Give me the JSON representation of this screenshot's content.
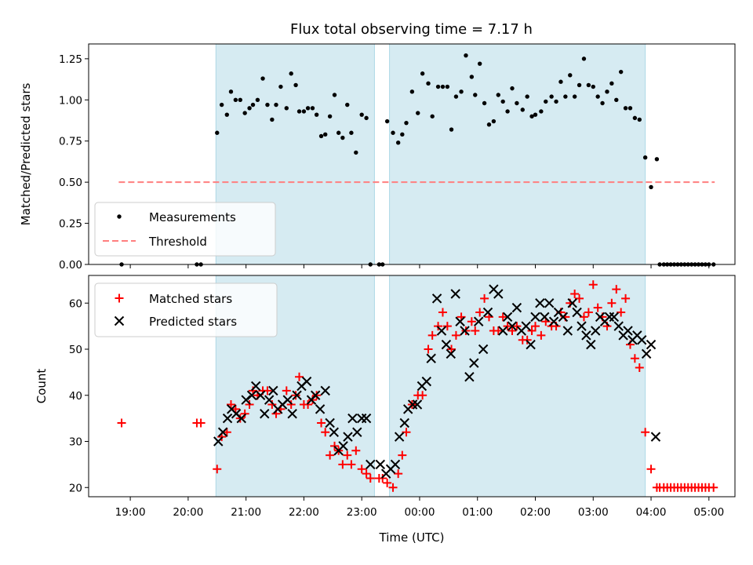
{
  "chart_data": [
    {
      "type": "scatter",
      "title": "Flux total observing time = 7.17 h",
      "xlabel": "",
      "ylabel": "Matched/Predicted stars",
      "x_units": "hours (UTC, continuing past midnight: 24 = 00:00)",
      "xlim": [
        18.28,
        29.45
      ],
      "ylim": [
        0.0,
        1.34
      ],
      "yticks": [
        "0.00",
        "0.25",
        "0.50",
        "0.75",
        "1.00",
        "1.25"
      ],
      "shaded_intervals": [
        [
          20.48,
          23.22
        ],
        [
          23.48,
          27.9
        ]
      ],
      "threshold": {
        "name": "Threshold",
        "value": 0.5,
        "x": [
          18.8,
          29.1
        ],
        "color": "#ff7f7f"
      },
      "legend": {
        "placement": "lower-left",
        "entries": [
          "Measurements",
          "Threshold"
        ]
      },
      "series": [
        {
          "name": "Measurements",
          "color": "#000000",
          "x": [
            18.85,
            20.15,
            20.22,
            20.5,
            20.58,
            20.67,
            20.74,
            20.82,
            20.9,
            20.98,
            21.06,
            21.12,
            21.2,
            21.29,
            21.37,
            21.45,
            21.52,
            21.6,
            21.7,
            21.78,
            21.86,
            21.92,
            22.0,
            22.07,
            22.15,
            22.22,
            22.3,
            22.37,
            22.45,
            22.53,
            22.6,
            22.67,
            22.75,
            22.82,
            22.9,
            23.0,
            23.08,
            23.15,
            23.3,
            23.36,
            23.44,
            23.54,
            23.63,
            23.7,
            23.77,
            23.87,
            23.97,
            24.05,
            24.15,
            24.22,
            24.32,
            24.4,
            24.48,
            24.55,
            24.63,
            24.72,
            24.8,
            24.9,
            24.96,
            25.04,
            25.12,
            25.2,
            25.28,
            25.36,
            25.44,
            25.52,
            25.6,
            25.68,
            25.78,
            25.86,
            25.94,
            26.0,
            26.1,
            26.18,
            26.28,
            26.36,
            26.44,
            26.52,
            26.6,
            26.68,
            26.76,
            26.84,
            26.92,
            27.0,
            27.08,
            27.16,
            27.24,
            27.32,
            27.4,
            27.48,
            27.56,
            27.64,
            27.72,
            27.8,
            27.9,
            28.0,
            28.1,
            28.15,
            28.22,
            28.28,
            28.34,
            28.4,
            28.46,
            28.52,
            28.58,
            28.64,
            28.7,
            28.76,
            28.82,
            28.88,
            28.94,
            29.0,
            29.08
          ],
          "y": [
            0.0,
            0.0,
            0.0,
            0.8,
            0.97,
            0.91,
            1.05,
            1.0,
            1.0,
            0.92,
            0.95,
            0.97,
            1.0,
            1.13,
            0.97,
            0.88,
            0.97,
            1.08,
            0.95,
            1.16,
            1.09,
            0.93,
            0.93,
            0.95,
            0.95,
            0.91,
            0.78,
            0.79,
            0.9,
            1.03,
            0.8,
            0.77,
            0.97,
            0.8,
            0.68,
            0.91,
            0.89,
            0.0,
            0.0,
            0.0,
            0.87,
            0.8,
            0.74,
            0.79,
            0.86,
            1.05,
            0.92,
            1.16,
            1.1,
            0.9,
            1.08,
            1.08,
            1.08,
            0.82,
            1.02,
            1.05,
            1.27,
            1.14,
            1.03,
            1.22,
            0.98,
            0.85,
            0.87,
            1.03,
            0.99,
            0.93,
            1.07,
            0.98,
            0.94,
            1.02,
            0.9,
            0.91,
            0.93,
            0.99,
            1.02,
            0.99,
            1.11,
            1.02,
            1.15,
            1.02,
            1.09,
            1.25,
            1.09,
            1.08,
            1.02,
            0.98,
            1.05,
            1.1,
            1.0,
            1.17,
            0.95,
            0.95,
            0.89,
            0.88,
            0.65,
            0.47,
            0.64,
            0.0,
            0.0,
            0.0,
            0.0,
            0.0,
            0.0,
            0.0,
            0.0,
            0.0,
            0.0,
            0.0,
            0.0,
            0.0,
            0.0,
            0.0,
            0.0
          ]
        }
      ]
    },
    {
      "type": "scatter",
      "title": "",
      "xlabel": "Time (UTC)",
      "ylabel": "Count",
      "xlim": [
        18.28,
        29.45
      ],
      "ylim": [
        18.0,
        66.0
      ],
      "yticks": [
        "20",
        "30",
        "40",
        "50",
        "60"
      ],
      "xticks": [
        {
          "value": 19,
          "label": "19:00"
        },
        {
          "value": 20,
          "label": "20:00"
        },
        {
          "value": 21,
          "label": "21:00"
        },
        {
          "value": 22,
          "label": "22:00"
        },
        {
          "value": 23,
          "label": "23:00"
        },
        {
          "value": 24,
          "label": "00:00"
        },
        {
          "value": 25,
          "label": "01:00"
        },
        {
          "value": 26,
          "label": "02:00"
        },
        {
          "value": 27,
          "label": "03:00"
        },
        {
          "value": 28,
          "label": "04:00"
        },
        {
          "value": 29,
          "label": "05:00"
        }
      ],
      "shaded_intervals": [
        [
          20.48,
          23.22
        ],
        [
          23.48,
          27.9
        ]
      ],
      "legend": {
        "placement": "top-left",
        "entries": [
          "Matched stars",
          "Predicted stars"
        ]
      },
      "series": [
        {
          "name": "Matched stars",
          "marker": "plus",
          "color": "#ff0000",
          "x": [
            18.85,
            20.15,
            20.22,
            20.5,
            20.58,
            20.67,
            20.74,
            20.82,
            20.9,
            20.98,
            21.06,
            21.12,
            21.2,
            21.29,
            21.37,
            21.45,
            21.52,
            21.6,
            21.7,
            21.78,
            21.86,
            21.92,
            22.0,
            22.07,
            22.15,
            22.22,
            22.3,
            22.37,
            22.45,
            22.53,
            22.6,
            22.67,
            22.75,
            22.82,
            22.9,
            23.0,
            23.08,
            23.15,
            23.3,
            23.36,
            23.44,
            23.54,
            23.63,
            23.7,
            23.77,
            23.87,
            23.97,
            24.05,
            24.15,
            24.22,
            24.32,
            24.4,
            24.48,
            24.55,
            24.63,
            24.72,
            24.8,
            24.9,
            24.96,
            25.04,
            25.12,
            25.2,
            25.28,
            25.36,
            25.44,
            25.52,
            25.6,
            25.68,
            25.78,
            25.86,
            25.94,
            26.0,
            26.1,
            26.18,
            26.28,
            26.36,
            26.44,
            26.52,
            26.6,
            26.68,
            26.76,
            26.84,
            26.92,
            27.0,
            27.08,
            27.16,
            27.24,
            27.32,
            27.4,
            27.48,
            27.56,
            27.64,
            27.72,
            27.8,
            27.9,
            28.0,
            28.1,
            28.15,
            28.22,
            28.28,
            28.34,
            28.4,
            28.46,
            28.52,
            28.58,
            28.64,
            28.7,
            28.76,
            28.82,
            28.88,
            28.94,
            29.0,
            29.08
          ],
          "y": [
            34,
            34,
            34,
            24,
            31,
            32,
            38,
            37,
            35,
            36,
            38,
            41,
            40,
            41,
            41,
            38,
            36,
            37,
            41,
            38,
            40,
            44,
            38,
            38,
            39,
            40,
            34,
            32,
            27,
            29,
            28,
            25,
            27,
            25,
            28,
            24,
            23,
            22,
            22,
            22,
            21,
            20,
            23,
            27,
            32,
            38,
            40,
            40,
            50,
            53,
            55,
            58,
            55,
            50,
            53,
            57,
            54,
            56,
            54,
            58,
            61,
            57,
            54,
            54,
            57,
            55,
            54,
            55,
            52,
            52,
            54,
            55,
            53,
            56,
            55,
            55,
            58,
            57,
            60,
            62,
            61,
            57,
            58,
            64,
            59,
            57,
            55,
            60,
            63,
            58,
            61,
            51,
            48,
            46,
            32,
            24,
            20,
            20,
            20,
            20,
            20,
            20,
            20,
            20,
            20,
            20,
            20,
            20,
            20,
            20,
            20,
            20,
            20
          ]
        },
        {
          "name": "Predicted stars",
          "marker": "x",
          "color": "#000000",
          "x": [
            20.52,
            20.6,
            20.68,
            20.75,
            20.83,
            20.92,
            21.0,
            21.1,
            21.17,
            21.25,
            21.32,
            21.4,
            21.47,
            21.55,
            21.63,
            21.72,
            21.8,
            21.88,
            21.96,
            22.05,
            22.13,
            22.2,
            22.28,
            22.37,
            22.45,
            22.52,
            22.6,
            22.68,
            22.76,
            22.84,
            22.92,
            23.0,
            23.08,
            23.15,
            23.32,
            23.42,
            23.5,
            23.58,
            23.65,
            23.74,
            23.8,
            23.88,
            23.96,
            24.04,
            24.12,
            24.2,
            24.3,
            24.38,
            24.46,
            24.54,
            24.62,
            24.7,
            24.78,
            24.86,
            24.94,
            25.02,
            25.1,
            25.18,
            25.28,
            25.36,
            25.44,
            25.52,
            25.6,
            25.68,
            25.76,
            25.84,
            25.92,
            26.0,
            26.08,
            26.16,
            26.24,
            26.32,
            26.4,
            26.48,
            26.56,
            26.64,
            26.72,
            26.8,
            26.88,
            26.96,
            27.04,
            27.12,
            27.2,
            27.28,
            27.36,
            27.44,
            27.52,
            27.6,
            27.68,
            27.76,
            27.84,
            27.92,
            28.0,
            28.08
          ],
          "y": [
            30,
            32,
            35,
            37,
            36,
            35,
            39,
            40,
            42,
            40,
            36,
            39,
            41,
            37,
            38,
            39,
            36,
            40,
            42,
            43,
            39,
            40,
            37,
            41,
            34,
            32,
            28,
            29,
            31,
            35,
            32,
            35,
            35,
            25,
            25,
            23,
            24,
            25,
            31,
            34,
            37,
            38,
            38,
            42,
            43,
            48,
            61,
            54,
            51,
            49,
            62,
            56,
            54,
            44,
            47,
            56,
            50,
            58,
            63,
            62,
            54,
            57,
            55,
            59,
            54,
            55,
            51,
            57,
            60,
            57,
            60,
            56,
            58,
            57,
            54,
            60,
            58,
            55,
            53,
            51,
            54,
            57,
            56,
            57,
            57,
            55,
            53,
            54,
            52,
            53,
            52,
            49,
            51,
            31
          ]
        }
      ]
    }
  ]
}
